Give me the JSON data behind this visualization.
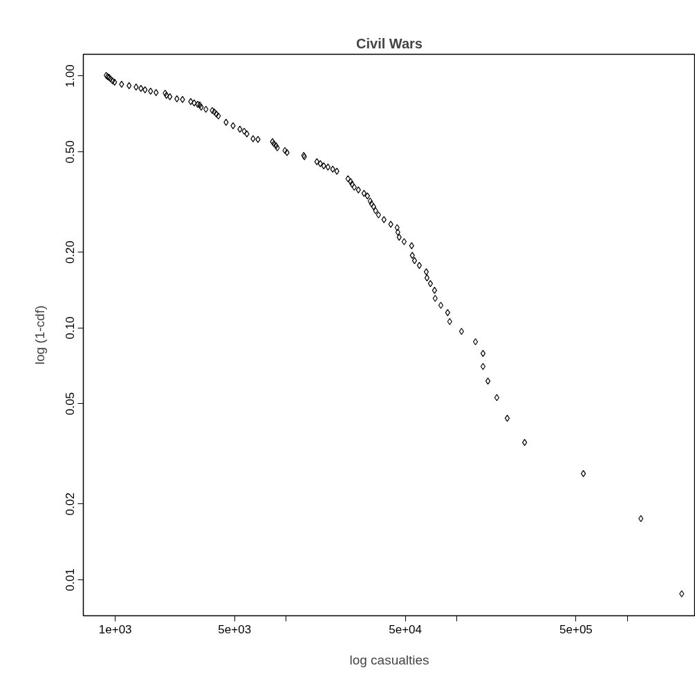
{
  "chart_data": {
    "type": "scatter",
    "title": "Civil Wars",
    "xlabel": "log casualties",
    "ylabel": "log (1-cdf)",
    "log": "xy",
    "marker": "diamond",
    "grid": false,
    "xlim": [
      650,
      2500000
    ],
    "ylim": [
      0.0072,
      1.22
    ],
    "xticks": [
      {
        "value": 1000,
        "label": "1e+03"
      },
      {
        "value": 5000,
        "label": "5e+03"
      },
      {
        "value": 10000,
        "label": null
      },
      {
        "value": 50000,
        "label": "5e+04"
      },
      {
        "value": 100000,
        "label": null
      },
      {
        "value": 500000,
        "label": "5e+05"
      },
      {
        "value": 1000000,
        "label": null
      }
    ],
    "yticks": [
      {
        "value": 0.01,
        "label": "0.01"
      },
      {
        "value": 0.02,
        "label": "0.02"
      },
      {
        "value": 0.05,
        "label": "0.05"
      },
      {
        "value": 0.1,
        "label": "0.10"
      },
      {
        "value": 0.2,
        "label": "0.20"
      },
      {
        "value": 0.5,
        "label": "0.50"
      },
      {
        "value": 1,
        "label": "1.00"
      }
    ],
    "series": [
      {
        "color": "#000000",
        "x": [
          885,
          902,
          919,
          937,
          964,
          991,
          1089,
          1205,
          1324,
          1413,
          1494,
          1610,
          1734,
          1960,
          1995,
          2089,
          2296,
          2477,
          2767,
          2897,
          3039,
          3126,
          3184,
          3396,
          3698,
          3802,
          3908,
          4018,
          4457,
          4898,
          5370,
          5689,
          5902,
          6412,
          6855,
          8337,
          8492,
          8730,
          8892,
          9862,
          10140,
          12700,
          12820,
          15170,
          15890,
          16640,
          17620,
          18790,
          19860,
          23070,
          23930,
          24380,
          25120,
          26550,
          28640,
          29990,
          31120,
          31700,
          32590,
          33500,
          34830,
          37500,
          41110,
          44770,
          45190,
          46030,
          49200,
          54450,
          54950,
          56620,
          60400,
          66370,
          66990,
          70150,
          74170,
          74820,
          80720,
          88510,
          91000,
          106700,
          128800,
          142600,
          142600,
          152400,
          171800,
          197700,
          250000,
          552100,
          1199000,
          2080000
        ],
        "values": [
          1.006,
          0.994,
          0.988,
          0.975,
          0.957,
          0.945,
          0.927,
          0.916,
          0.904,
          0.893,
          0.882,
          0.871,
          0.86,
          0.855,
          0.838,
          0.828,
          0.812,
          0.807,
          0.792,
          0.782,
          0.772,
          0.767,
          0.753,
          0.738,
          0.73,
          0.721,
          0.707,
          0.694,
          0.655,
          0.635,
          0.615,
          0.604,
          0.589,
          0.564,
          0.56,
          0.549,
          0.539,
          0.529,
          0.519,
          0.506,
          0.497,
          0.484,
          0.478,
          0.457,
          0.449,
          0.44,
          0.435,
          0.427,
          0.419,
          0.391,
          0.381,
          0.372,
          0.362,
          0.353,
          0.342,
          0.334,
          0.319,
          0.311,
          0.303,
          0.292,
          0.281,
          0.269,
          0.258,
          0.25,
          0.24,
          0.229,
          0.22,
          0.212,
          0.194,
          0.185,
          0.177,
          0.167,
          0.158,
          0.15,
          0.141,
          0.131,
          0.123,
          0.115,
          0.106,
          0.0969,
          0.0881,
          0.0792,
          0.0703,
          0.0615,
          0.0529,
          0.0438,
          0.0351,
          0.0264,
          0.0175,
          0.0088
        ]
      }
    ]
  }
}
